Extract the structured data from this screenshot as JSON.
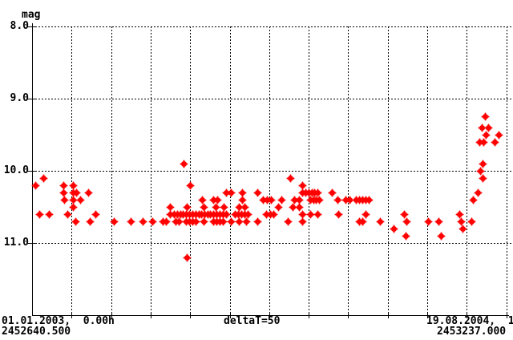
{
  "header": {
    "y_unit_label": "mag"
  },
  "y_axis": {
    "tick_labels": [
      "8.0",
      "9.0",
      "10.0",
      "11.0"
    ]
  },
  "x_axis": {
    "left_line1": "01.01.2003,  0.00h",
    "left_line2": "2452640.500",
    "center_label": "deltaT=50",
    "right_line1": "19.08.2004,  1",
    "right_line2": "2453237.000"
  },
  "colors": {
    "marker": "#ff0000",
    "axis": "#000000",
    "background": "#ffffff"
  },
  "chart_data": {
    "type": "scatter",
    "title": "mag",
    "legend": "none",
    "grid": "dashed",
    "x_axis": {
      "label_left_date": "01.01.2003, 0.00h",
      "label_left_jd": 2452640.5,
      "label_right_date": "19.08.2004",
      "label_right_jd": 2453237.0,
      "grid_step_days": 50,
      "n_gridlines": 12
    },
    "y_axis": {
      "label": "mag",
      "min": 8.0,
      "max": 11.0,
      "grid_step": 1.0,
      "inverted": true
    },
    "points_format": "[days_since_JD2452640.5, magnitude]",
    "points": [
      [
        574,
        9.25
      ],
      [
        569,
        9.4
      ],
      [
        578,
        9.4
      ],
      [
        575,
        9.5
      ],
      [
        591,
        9.5
      ],
      [
        566,
        9.6
      ],
      [
        571,
        9.6
      ],
      [
        586,
        9.6
      ],
      [
        192,
        9.9
      ],
      [
        570,
        9.9
      ],
      [
        567,
        10.0
      ],
      [
        15,
        10.1
      ],
      [
        327,
        10.1
      ],
      [
        570,
        10.1
      ],
      [
        5,
        10.2
      ],
      [
        40,
        10.2
      ],
      [
        52,
        10.2
      ],
      [
        200,
        10.2
      ],
      [
        342,
        10.2
      ],
      [
        40,
        10.3
      ],
      [
        52,
        10.3
      ],
      [
        56,
        10.3
      ],
      [
        71,
        10.3
      ],
      [
        246,
        10.3
      ],
      [
        252,
        10.3
      ],
      [
        266,
        10.3
      ],
      [
        286,
        10.3
      ],
      [
        342,
        10.3
      ],
      [
        346,
        10.3
      ],
      [
        350,
        10.3
      ],
      [
        354,
        10.3
      ],
      [
        358,
        10.3
      ],
      [
        362,
        10.3
      ],
      [
        380,
        10.3
      ],
      [
        564,
        10.3
      ],
      [
        41,
        10.4
      ],
      [
        52,
        10.4
      ],
      [
        61,
        10.4
      ],
      [
        216,
        10.4
      ],
      [
        230,
        10.4
      ],
      [
        235,
        10.4
      ],
      [
        266,
        10.4
      ],
      [
        293,
        10.4
      ],
      [
        298,
        10.4
      ],
      [
        303,
        10.4
      ],
      [
        316,
        10.4
      ],
      [
        332,
        10.4
      ],
      [
        338,
        10.4
      ],
      [
        352,
        10.4
      ],
      [
        356,
        10.4
      ],
      [
        360,
        10.4
      ],
      [
        364,
        10.4
      ],
      [
        387,
        10.4
      ],
      [
        397,
        10.4
      ],
      [
        402,
        10.4
      ],
      [
        410,
        10.4
      ],
      [
        414,
        10.4
      ],
      [
        418,
        10.4
      ],
      [
        422,
        10.4
      ],
      [
        426,
        10.4
      ],
      [
        558,
        10.4
      ],
      [
        52,
        10.5
      ],
      [
        175,
        10.5
      ],
      [
        196,
        10.5
      ],
      [
        218,
        10.5
      ],
      [
        233,
        10.5
      ],
      [
        243,
        10.5
      ],
      [
        262,
        10.5
      ],
      [
        269,
        10.5
      ],
      [
        312,
        10.5
      ],
      [
        330,
        10.5
      ],
      [
        338,
        10.5
      ],
      [
        10,
        10.6
      ],
      [
        22,
        10.6
      ],
      [
        45,
        10.6
      ],
      [
        81,
        10.6
      ],
      [
        175,
        10.6
      ],
      [
        180,
        10.6
      ],
      [
        184,
        10.6
      ],
      [
        188,
        10.6
      ],
      [
        191,
        10.6
      ],
      [
        195,
        10.6
      ],
      [
        199,
        10.6
      ],
      [
        203,
        10.6
      ],
      [
        207,
        10.6
      ],
      [
        211,
        10.6
      ],
      [
        215,
        10.6
      ],
      [
        219,
        10.6
      ],
      [
        223,
        10.6
      ],
      [
        226,
        10.6
      ],
      [
        230,
        10.6
      ],
      [
        234,
        10.6
      ],
      [
        238,
        10.6
      ],
      [
        242,
        10.6
      ],
      [
        246,
        10.6
      ],
      [
        257,
        10.6
      ],
      [
        261,
        10.6
      ],
      [
        265,
        10.6
      ],
      [
        269,
        10.6
      ],
      [
        273,
        10.6
      ],
      [
        297,
        10.6
      ],
      [
        302,
        10.6
      ],
      [
        306,
        10.6
      ],
      [
        342,
        10.6
      ],
      [
        352,
        10.6
      ],
      [
        362,
        10.6
      ],
      [
        388,
        10.6
      ],
      [
        422,
        10.6
      ],
      [
        471,
        10.6
      ],
      [
        541,
        10.6
      ],
      [
        55,
        10.7
      ],
      [
        74,
        10.7
      ],
      [
        104,
        10.7
      ],
      [
        125,
        10.7
      ],
      [
        140,
        10.7
      ],
      [
        153,
        10.7
      ],
      [
        166,
        10.7
      ],
      [
        170,
        10.7
      ],
      [
        182,
        10.7
      ],
      [
        186,
        10.7
      ],
      [
        195,
        10.7
      ],
      [
        199,
        10.7
      ],
      [
        203,
        10.7
      ],
      [
        207,
        10.7
      ],
      [
        218,
        10.7
      ],
      [
        230,
        10.7
      ],
      [
        234,
        10.7
      ],
      [
        238,
        10.7
      ],
      [
        242,
        10.7
      ],
      [
        252,
        10.7
      ],
      [
        262,
        10.7
      ],
      [
        271,
        10.7
      ],
      [
        286,
        10.7
      ],
      [
        324,
        10.7
      ],
      [
        342,
        10.7
      ],
      [
        414,
        10.7
      ],
      [
        418,
        10.7
      ],
      [
        441,
        10.7
      ],
      [
        474,
        10.7
      ],
      [
        502,
        10.7
      ],
      [
        515,
        10.7
      ],
      [
        543,
        10.7
      ],
      [
        556,
        10.7
      ],
      [
        458,
        10.8
      ],
      [
        545,
        10.8
      ],
      [
        473,
        10.9
      ],
      [
        518,
        10.9
      ],
      [
        196,
        11.2
      ]
    ]
  }
}
